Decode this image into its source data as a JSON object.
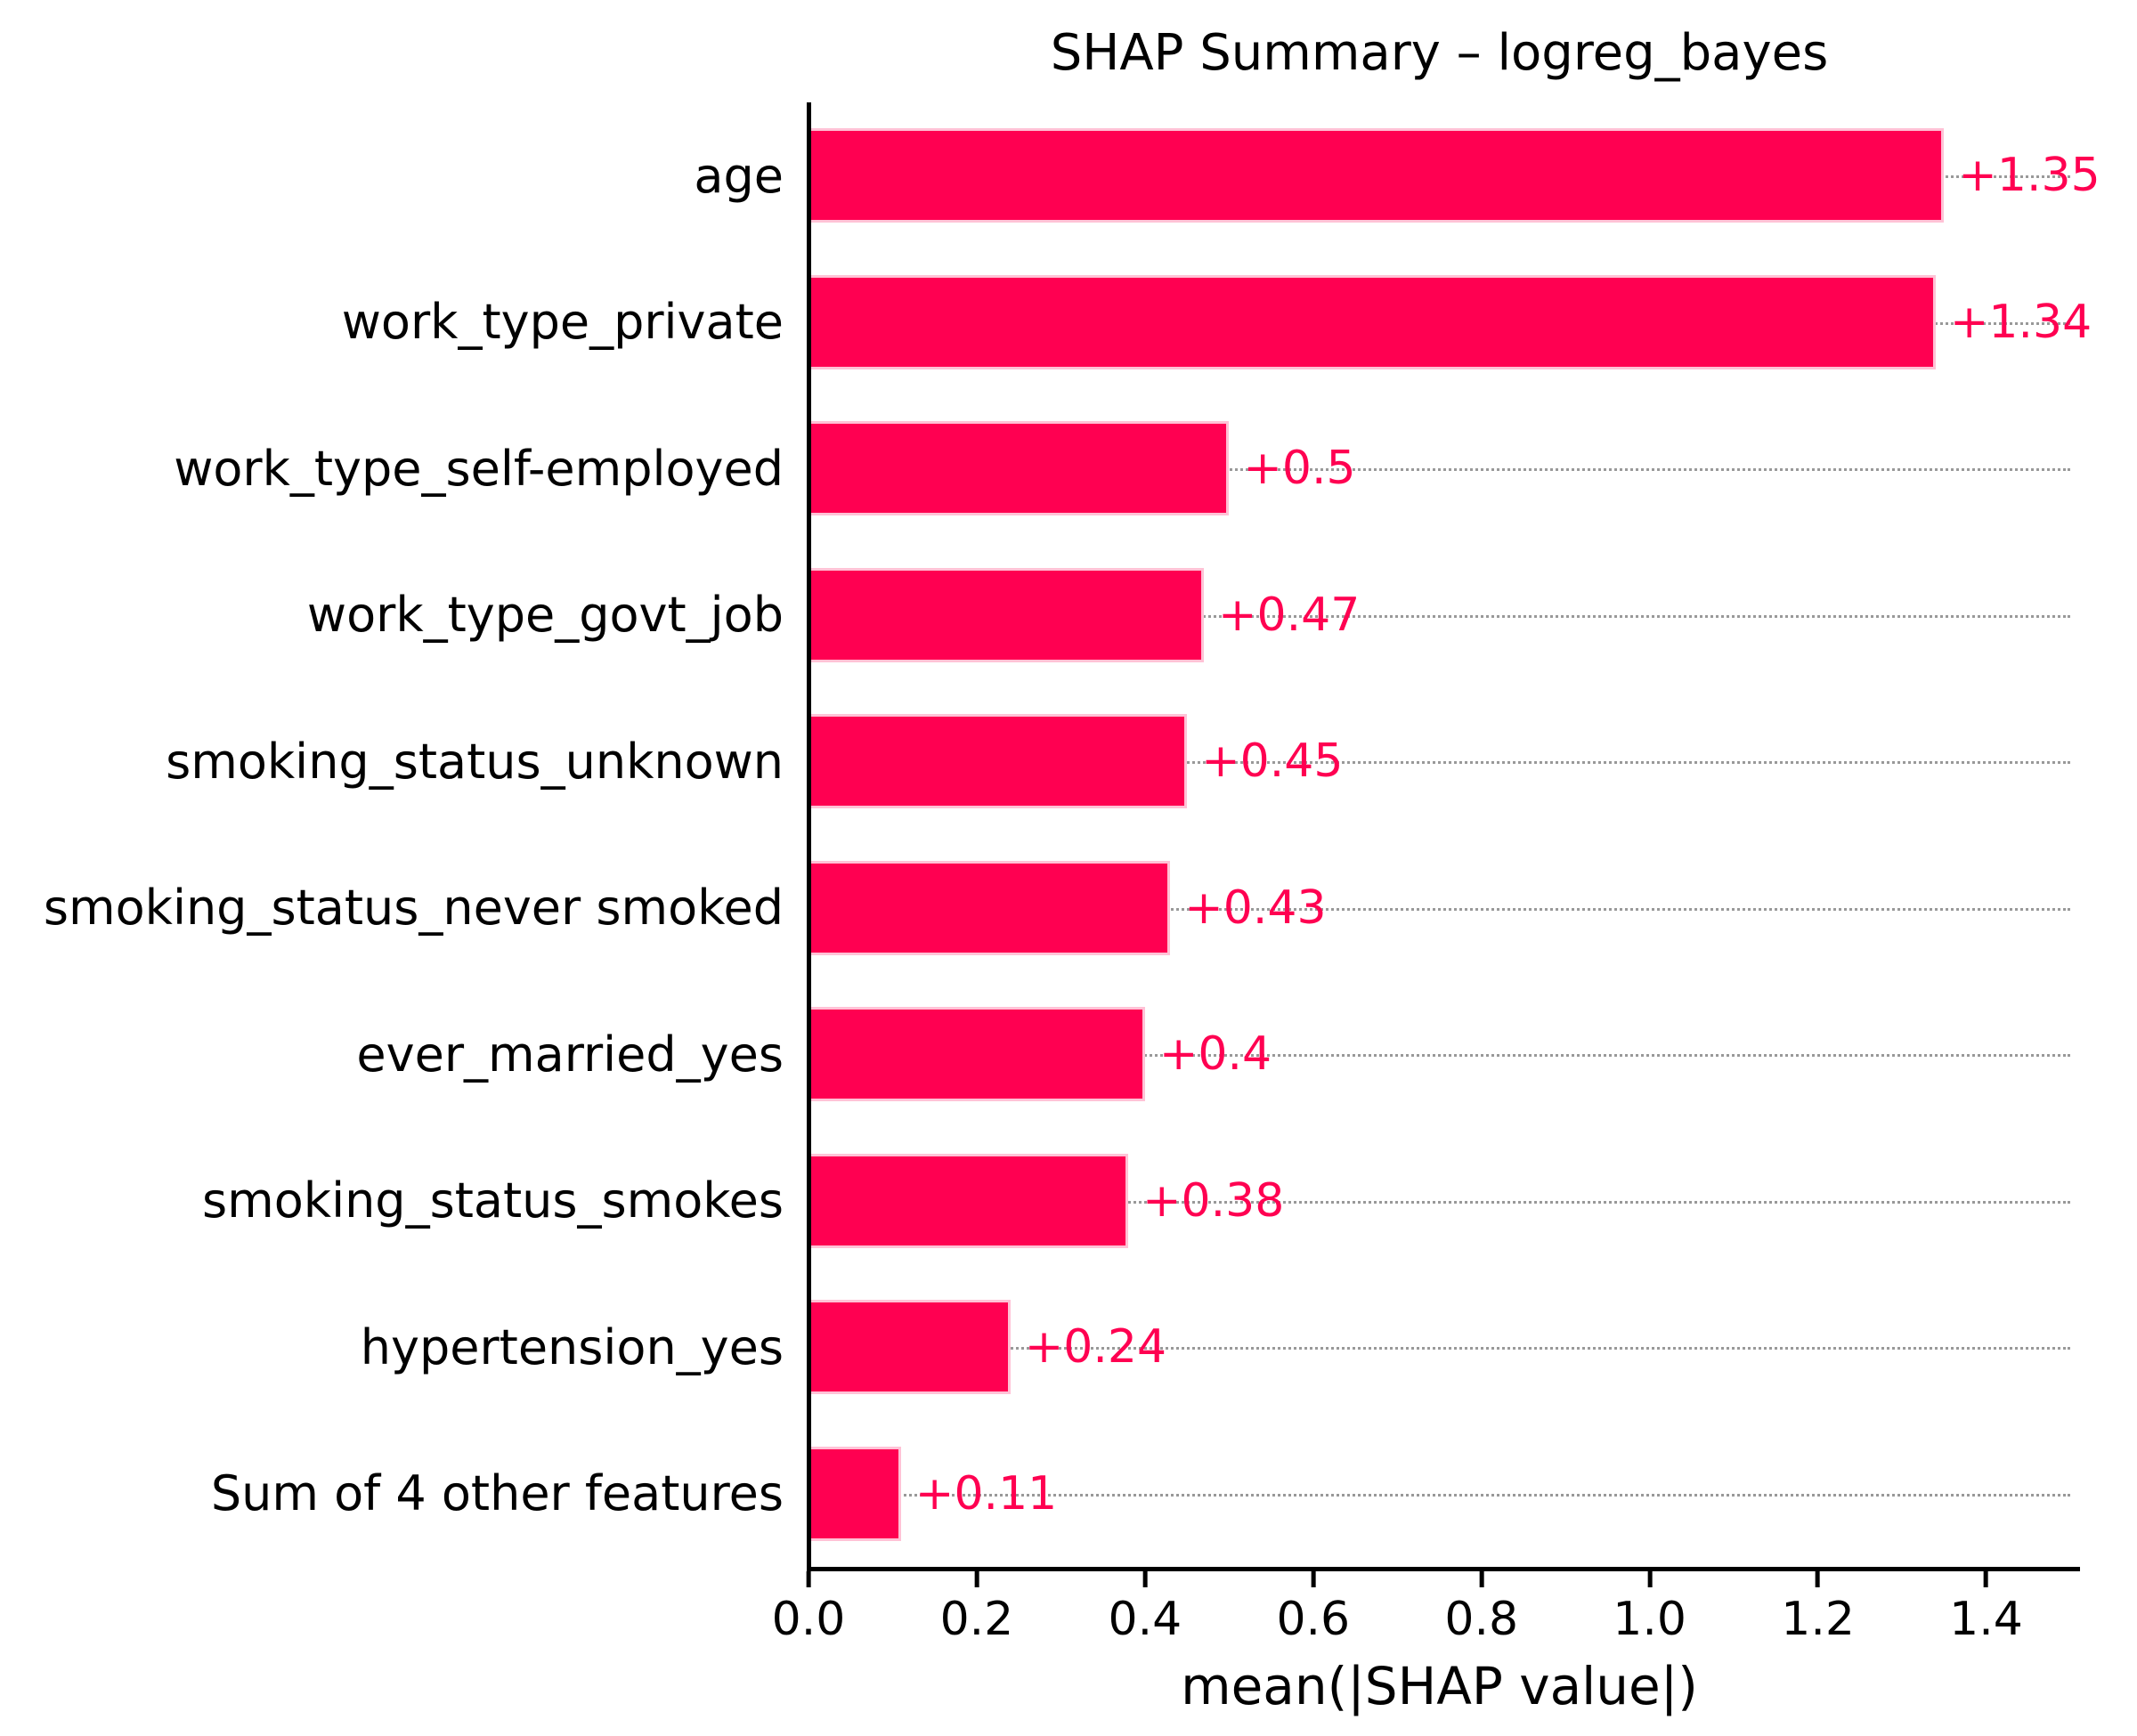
{
  "chart_data": {
    "type": "bar",
    "orientation": "horizontal",
    "title": "SHAP Summary – logreg_bayes",
    "xlabel": "mean(|SHAP value|)",
    "categories": [
      "age",
      "work_type_private",
      "work_type_self-employed",
      "work_type_govt_job",
      "smoking_status_unknown",
      "smoking_status_never smoked",
      "ever_married_yes",
      "smoking_status_smokes",
      "hypertension_yes",
      "Sum of 4 other features"
    ],
    "values": [
      1.35,
      1.34,
      0.5,
      0.47,
      0.45,
      0.43,
      0.4,
      0.38,
      0.24,
      0.11
    ],
    "value_labels": [
      "+1.35",
      "+1.34",
      "+0.5",
      "+0.47",
      "+0.45",
      "+0.43",
      "+0.4",
      "+0.38",
      "+0.24",
      "+0.11"
    ],
    "x_tick_values": [
      0.0,
      0.2,
      0.4,
      0.6,
      0.8,
      1.0,
      1.2,
      1.4
    ],
    "x_tick_labels": [
      "0.0",
      "0.2",
      "0.4",
      "0.6",
      "0.8",
      "1.0",
      "1.2",
      "1.4"
    ],
    "xlim": [
      0,
      1.5
    ],
    "grid": "dotted horizontal line per bar row",
    "legend": "none",
    "bar_color": "#ff0051",
    "bar_edge_color": "#ffc2d6",
    "value_label_color": "#ff0051",
    "axis_color": "#000000",
    "gridline_color": "#999999"
  }
}
